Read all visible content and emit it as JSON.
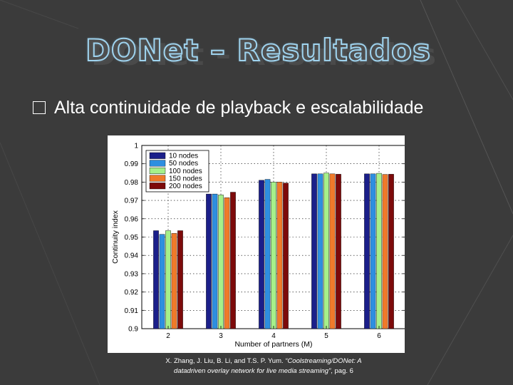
{
  "slide": {
    "title": "DONet – Resultados",
    "bullet": "Alta continuidade de playback e escalabilidade",
    "caption": {
      "prefix": "X. Zhang, J. Liu, B. Li, and T.S. P. Yum. ",
      "italic": "“Coolstreaming/DONet: A datadriven overlay network for live media streaming”",
      "suffix": ", pag. 6"
    }
  },
  "colors": {
    "background": "#3b3b3b",
    "title_outline": "#9fd3ee",
    "series": [
      "#1b1f8a",
      "#2e8fe0",
      "#a6f08a",
      "#f07a2a",
      "#7d0a0a"
    ]
  },
  "chart_data": {
    "type": "bar",
    "title": "",
    "xlabel": "Number of partners (M)",
    "ylabel": "Continuity index",
    "categories": [
      "2",
      "3",
      "4",
      "5",
      "6"
    ],
    "ylim": [
      0.9,
      1
    ],
    "yticks": [
      "0.9",
      "0.91",
      "0.92",
      "0.93",
      "0.94",
      "0.95",
      "0.96",
      "0.97",
      "0.98",
      "0.99",
      "1"
    ],
    "grid": true,
    "legend_position": "top-left",
    "series": [
      {
        "name": "10 nodes",
        "values": [
          0.9535,
          0.9735,
          0.981,
          0.9845,
          0.9845
        ]
      },
      {
        "name": "50 nodes",
        "values": [
          0.9515,
          0.9735,
          0.9815,
          0.9845,
          0.9845
        ]
      },
      {
        "name": "100 nodes",
        "values": [
          0.9535,
          0.973,
          0.98,
          0.985,
          0.9848
        ]
      },
      {
        "name": "150 nodes",
        "values": [
          0.952,
          0.9715,
          0.98,
          0.9845,
          0.9842
        ]
      },
      {
        "name": "200 nodes",
        "values": [
          0.9535,
          0.9745,
          0.9795,
          0.9843,
          0.9843
        ]
      }
    ]
  }
}
